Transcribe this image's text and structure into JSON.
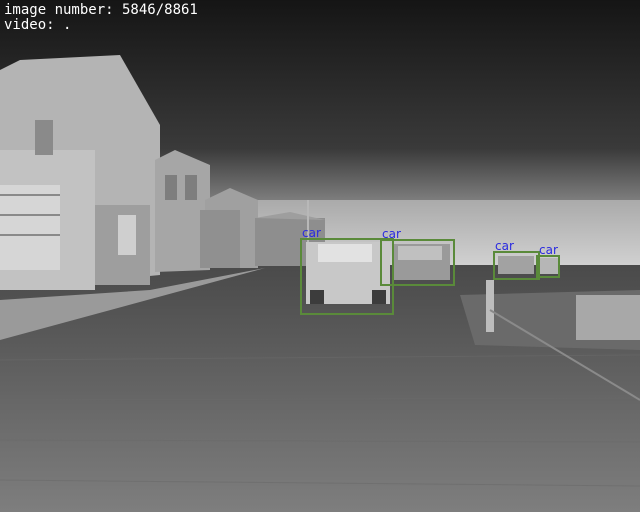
{
  "overlay": {
    "image_number_text": "image number: 5846/8861",
    "video_text": "video: ."
  },
  "detections": [
    {
      "label": "car"
    },
    {
      "label": "car"
    },
    {
      "label": "car"
    },
    {
      "label": "car"
    }
  ],
  "colors": {
    "box": "#5a8a3a",
    "label": "#2a2ae0",
    "hud_text": "#ffffff"
  }
}
